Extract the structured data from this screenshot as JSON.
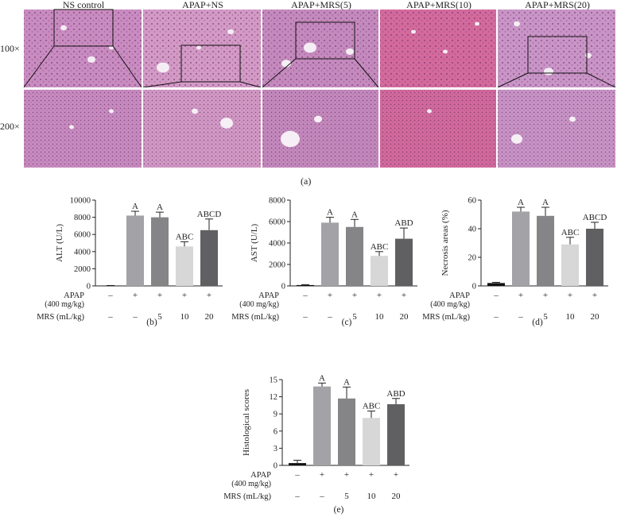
{
  "histology": {
    "column_titles": [
      "NS control",
      "APAP+NS",
      "APAP+MRS(5)",
      "APAP+MRS(10)",
      "APAP+MRS(20)"
    ],
    "row_labels": [
      "100×",
      "200×"
    ],
    "panel_label": "(a)"
  },
  "treatment_rows": {
    "apap_label_line1": "APAP",
    "apap_label_line2": "(400 mg/kg)",
    "apap_values": [
      "–",
      "+",
      "+",
      "+",
      "+"
    ],
    "mrs_label": "MRS (mL/kg)",
    "mrs_values": [
      "–",
      "–",
      "5",
      "10",
      "20"
    ]
  },
  "bar_colors": [
    "#111111",
    "#a3a3a7",
    "#858587",
    "#d7d7d7",
    "#606062"
  ],
  "chart_data": [
    {
      "type": "bar",
      "panel": "(b)",
      "ylabel": "ALT (U/L)",
      "ylim": [
        0,
        10000
      ],
      "yticks": [
        0,
        2000,
        4000,
        6000,
        8000,
        10000
      ],
      "categories": [
        "NS control",
        "APAP+NS",
        "APAP+MRS(5)",
        "APAP+MRS(10)",
        "APAP+MRS(20)"
      ],
      "values": [
        30,
        8200,
        8000,
        4600,
        6500
      ],
      "errors": [
        20,
        500,
        600,
        550,
        1300
      ],
      "labels": [
        "",
        "A",
        "A",
        "ABC",
        "ABCD"
      ]
    },
    {
      "type": "bar",
      "panel": "(c)",
      "ylabel": "AST (U/L)",
      "ylim": [
        0,
        8000
      ],
      "yticks": [
        0,
        2000,
        4000,
        6000,
        8000
      ],
      "categories": [
        "NS control",
        "APAP+NS",
        "APAP+MRS(5)",
        "APAP+MRS(10)",
        "APAP+MRS(20)"
      ],
      "values": [
        80,
        5900,
        5500,
        2800,
        4400
      ],
      "errors": [
        40,
        500,
        700,
        400,
        1000
      ],
      "labels": [
        "",
        "A",
        "A",
        "ABC",
        "ABD"
      ]
    },
    {
      "type": "bar",
      "panel": "(d)",
      "ylabel": "Necrosis areas (%)",
      "ylim": [
        0,
        60
      ],
      "yticks": [
        0,
        20,
        40,
        60
      ],
      "categories": [
        "NS control",
        "APAP+NS",
        "APAP+MRS(5)",
        "APAP+MRS(10)",
        "APAP+MRS(20)"
      ],
      "values": [
        2,
        52,
        49,
        29,
        40
      ],
      "errors": [
        0.5,
        3,
        6,
        5,
        4.5
      ],
      "labels": [
        "",
        "A",
        "A",
        "ABC",
        "ABCD"
      ]
    },
    {
      "type": "bar",
      "panel": "(e)",
      "ylabel": "Histological scores",
      "ylim": [
        0,
        15
      ],
      "yticks": [
        0,
        3,
        6,
        9,
        12,
        15
      ],
      "categories": [
        "NS control",
        "APAP+NS",
        "APAP+MRS(5)",
        "APAP+MRS(10)",
        "APAP+MRS(20)"
      ],
      "values": [
        0.4,
        13.8,
        11.7,
        8.3,
        10.7
      ],
      "errors": [
        0.5,
        0.6,
        2.0,
        1.2,
        1.0
      ],
      "labels": [
        "",
        "A",
        "A",
        "ABC",
        "ABD"
      ]
    }
  ]
}
